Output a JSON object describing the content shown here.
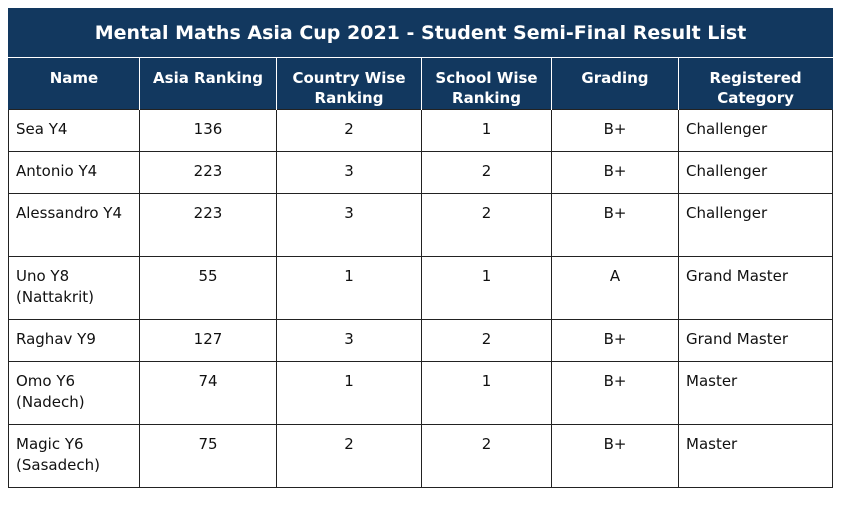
{
  "title": "Mental Maths Asia Cup 2021 - Student Semi-Final Result List",
  "headers": {
    "name": "Name",
    "asia": "Asia Ranking",
    "country": "Country Wise Ranking",
    "school": "School Wise Ranking",
    "grading": "Grading",
    "category": "Registered Category"
  },
  "rows": [
    {
      "name": "Sea Y4",
      "asia": "136",
      "country": "2",
      "school": "1",
      "grading": "B+",
      "category": "Challenger"
    },
    {
      "name": "Antonio Y4",
      "asia": "223",
      "country": "3",
      "school": "2",
      "grading": "B+",
      "category": "Challenger"
    },
    {
      "name": "Alessandro Y4",
      "asia": "223",
      "country": "3",
      "school": "2",
      "grading": "B+",
      "category": "Challenger"
    },
    {
      "name": "Uno Y8 (Nattakrit)",
      "asia": "55",
      "country": "1",
      "school": "1",
      "grading": "A",
      "category": "Grand Master"
    },
    {
      "name": "Raghav Y9",
      "asia": "127",
      "country": "3",
      "school": "2",
      "grading": "B+",
      "category": "Grand Master"
    },
    {
      "name": "Omo Y6 (Nadech)",
      "asia": "74",
      "country": "1",
      "school": "1",
      "grading": "B+",
      "category": "Master"
    },
    {
      "name": "Magic Y6 (Sasadech)",
      "asia": "75",
      "country": "2",
      "school": "2",
      "grading": "B+",
      "category": "Master"
    }
  ],
  "colors": {
    "header_bg": "#12385f",
    "header_text": "#ffffff",
    "border": "#222222"
  }
}
